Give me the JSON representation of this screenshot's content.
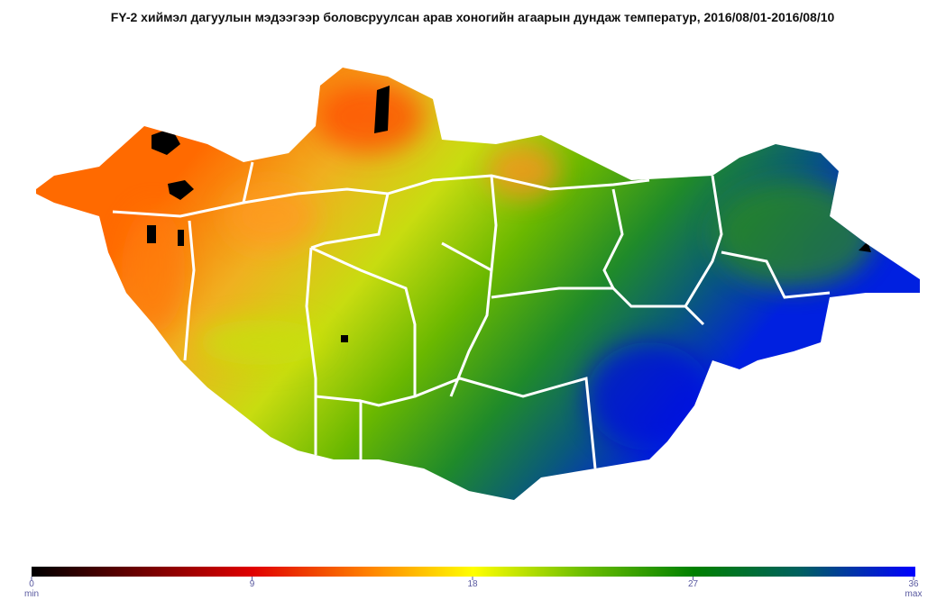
{
  "title": "FY-2 хиймэл дагуулын мэдээгээр боловсруулсан арав хоногийн агаарын дундаж температур, 2016/08/01-2016/08/10",
  "colorbar": {
    "ticks": [
      0,
      9,
      18,
      27,
      36
    ],
    "min_label": "min",
    "max_label": "max"
  }
}
